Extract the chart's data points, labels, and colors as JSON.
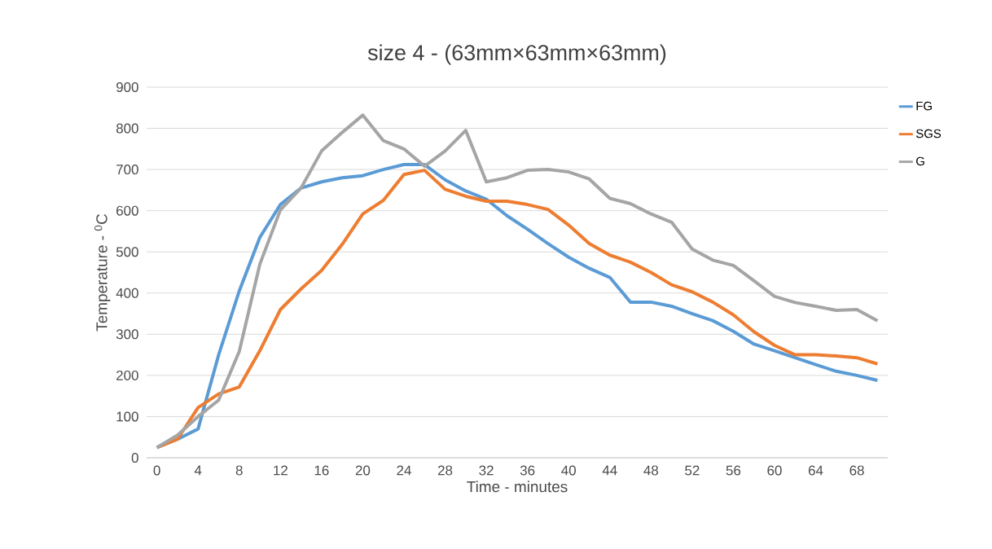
{
  "chart_data": {
    "type": "line",
    "title": "size 4 - (63mm×63mm×63mm)",
    "xlabel": "Time - minutes",
    "ylabel": "Temperature - $^{0}$C",
    "categories": [
      "0",
      null,
      "4",
      null,
      "8",
      null,
      "12",
      null,
      "16",
      null,
      "20",
      null,
      "24",
      null,
      "28",
      null,
      "32",
      null,
      "36",
      null,
      "40",
      null,
      "44",
      null,
      "48",
      null,
      "52",
      null,
      "56",
      null,
      "60",
      null,
      "64",
      null,
      "68",
      null
    ],
    "series": [
      {
        "name": "FG",
        "color": "#5b9bd5",
        "values": [
          25,
          45,
          70,
          250,
          405,
          535,
          615,
          655,
          670,
          680,
          685,
          700,
          712,
          712,
          675,
          648,
          628,
          588,
          555,
          520,
          487,
          460,
          438,
          378,
          378,
          368,
          350,
          333,
          307,
          276,
          260,
          243,
          226,
          210,
          200,
          188
        ]
      },
      {
        "name": "SGS",
        "color": "#ed7d31",
        "values": [
          25,
          45,
          122,
          155,
          172,
          260,
          360,
          410,
          455,
          518,
          592,
          625,
          688,
          698,
          652,
          635,
          623,
          623,
          615,
          603,
          565,
          520,
          492,
          475,
          450,
          420,
          403,
          378,
          347,
          306,
          273,
          250,
          250,
          247,
          243,
          228
        ]
      },
      {
        "name": "G",
        "color": "#a5a5a5",
        "values": [
          25,
          55,
          100,
          140,
          258,
          470,
          602,
          655,
          745,
          790,
          832,
          770,
          750,
          708,
          745,
          795,
          670,
          680,
          698,
          700,
          694,
          677,
          630,
          617,
          592,
          572,
          507,
          480,
          467,
          430,
          392,
          377,
          368,
          358,
          360,
          333
        ]
      }
    ],
    "ylim": [
      0,
      900
    ],
    "yticks": [
      0,
      100,
      200,
      300,
      400,
      500,
      600,
      700,
      800,
      900
    ],
    "grid": "y",
    "legend": "right"
  }
}
